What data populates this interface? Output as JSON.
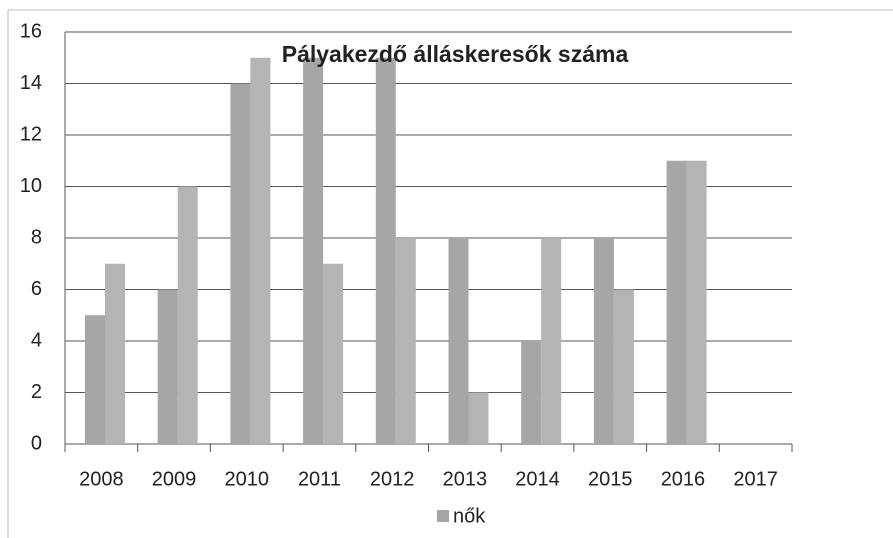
{
  "chart_data": {
    "type": "bar",
    "title": "Pályakezdő álláskeresők száma",
    "categories": [
      "2008",
      "2009",
      "2010",
      "2011",
      "2012",
      "2013",
      "2014",
      "2015",
      "2016",
      "2017"
    ],
    "series": [
      {
        "name": "nők",
        "color": "#a6a6a6",
        "values": [
          5,
          6,
          14,
          15,
          15,
          8,
          4,
          8,
          11,
          null
        ]
      },
      {
        "color": "#b4b4b4",
        "values": [
          7,
          10,
          15,
          7,
          8,
          2,
          8,
          6,
          11,
          null
        ]
      }
    ],
    "ylim": [
      0,
      16
    ],
    "yticks": [
      0,
      2,
      4,
      6,
      8,
      10,
      12,
      14,
      16
    ],
    "grid": true,
    "legend": "bottom"
  }
}
